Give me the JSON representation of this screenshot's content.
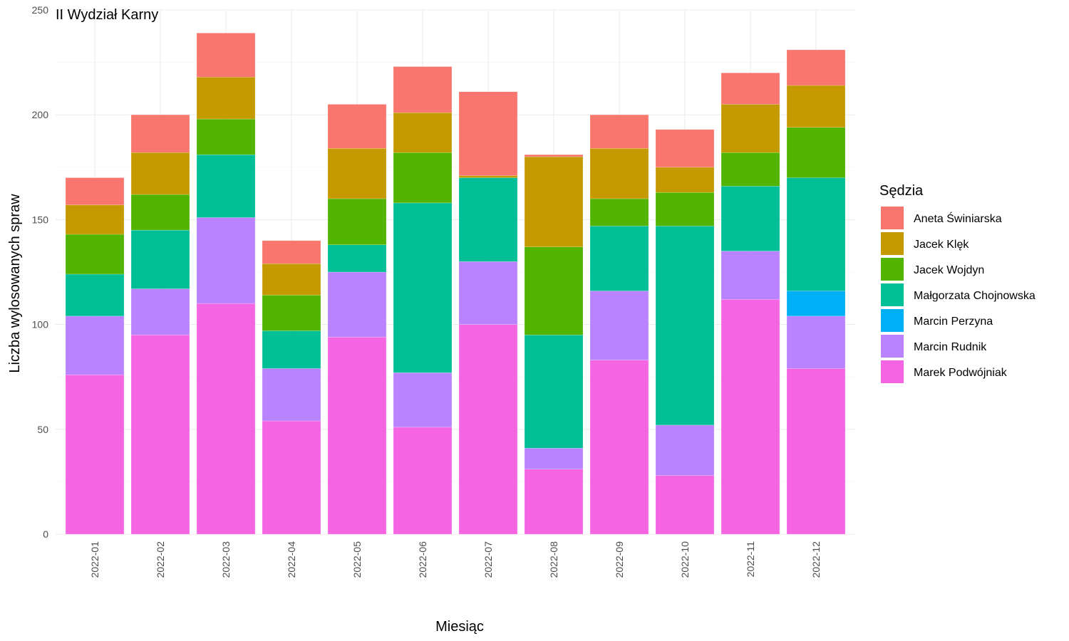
{
  "chart_data": {
    "type": "bar",
    "stacked": true,
    "title": "II Wydział Karny",
    "xlabel": "Miesiąc",
    "ylabel": "Liczba wylosowanych spraw",
    "ylim": [
      0,
      250
    ],
    "yticks": [
      0,
      50,
      100,
      150,
      200,
      250
    ],
    "grid": true,
    "legend": {
      "title": "Sędzia",
      "position": "right"
    },
    "categories": [
      "2022-01",
      "2022-02",
      "2022-03",
      "2022-04",
      "2022-05",
      "2022-06",
      "2022-07",
      "2022-08",
      "2022-09",
      "2022-10",
      "2022-11",
      "2022-12"
    ],
    "series": [
      {
        "name": "Marek Podwójniak",
        "color": "#F564E3",
        "values": [
          76,
          95,
          110,
          54,
          94,
          51,
          100,
          31,
          83,
          28,
          112,
          79
        ]
      },
      {
        "name": "Marcin Rudnik",
        "color": "#B983FF",
        "values": [
          28,
          22,
          41,
          25,
          31,
          26,
          30,
          10,
          33,
          24,
          23,
          25
        ]
      },
      {
        "name": "Marcin Perzyna",
        "color": "#00B0F6",
        "values": [
          0,
          0,
          0,
          0,
          0,
          0,
          0,
          0,
          0,
          0,
          0,
          12
        ]
      },
      {
        "name": "Małgorzata Chojnowska",
        "color": "#00BF96",
        "values": [
          20,
          28,
          30,
          18,
          13,
          81,
          40,
          54,
          31,
          95,
          31,
          54
        ]
      },
      {
        "name": "Jacek Wojdyn",
        "color": "#53B400",
        "values": [
          19,
          17,
          17,
          17,
          22,
          24,
          0,
          42,
          13,
          16,
          16,
          24
        ]
      },
      {
        "name": "Jacek Klęk",
        "color": "#C49A00",
        "values": [
          14,
          20,
          20,
          15,
          24,
          19,
          1,
          43,
          24,
          12,
          23,
          20
        ]
      },
      {
        "name": "Aneta Świniarska",
        "color": "#F8766D",
        "values": [
          13,
          18,
          21,
          11,
          21,
          22,
          40,
          1,
          16,
          18,
          15,
          17
        ]
      }
    ],
    "legend_order": [
      "Aneta Świniarska",
      "Jacek Klęk",
      "Jacek Wojdyn",
      "Małgorzata Chojnowska",
      "Marcin Perzyna",
      "Marcin Rudnik",
      "Marek Podwójniak"
    ]
  }
}
